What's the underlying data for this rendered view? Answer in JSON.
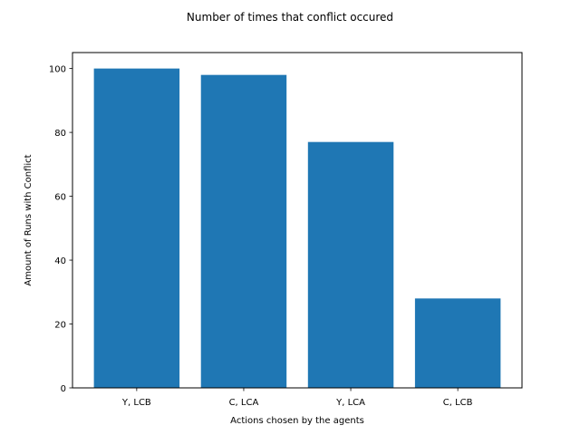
{
  "chart_data": {
    "type": "bar",
    "title": "Number of times that conflict occured",
    "xlabel": "Actions chosen by the agents",
    "ylabel": "Amount of Runs with Conflict",
    "categories": [
      "Y, LCB",
      "C, LCA",
      "Y, LCA",
      "C, LCB"
    ],
    "values": [
      100,
      98,
      77,
      28
    ],
    "ylim": [
      0,
      105
    ],
    "yticks": [
      0,
      20,
      40,
      60,
      80,
      100
    ],
    "bar_color": "#1f77b4",
    "grid": false,
    "legend": "none"
  }
}
